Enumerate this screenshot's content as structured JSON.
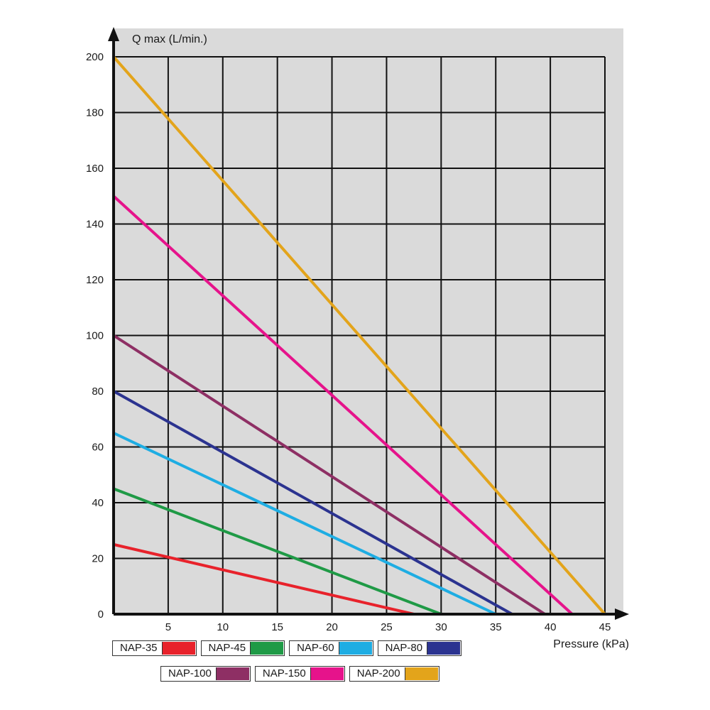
{
  "chart_data": {
    "type": "line",
    "title": "",
    "xlabel": "Pressure (kPa)",
    "ylabel": "Q max (L/min.)",
    "xlim": [
      0,
      45
    ],
    "ylim": [
      0,
      200
    ],
    "x_ticks": [
      5,
      10,
      15,
      20,
      25,
      30,
      35,
      40,
      45
    ],
    "y_ticks": [
      0,
      20,
      40,
      60,
      80,
      100,
      120,
      140,
      160,
      180,
      200
    ],
    "grid": true,
    "legend_position": "bottom",
    "series": [
      {
        "name": "NAP-35",
        "color": "#e8222b",
        "x": [
          0,
          27.5
        ],
        "y": [
          25,
          0
        ]
      },
      {
        "name": "NAP-45",
        "color": "#1f9a46",
        "x": [
          0,
          30
        ],
        "y": [
          45,
          0
        ]
      },
      {
        "name": "NAP-60",
        "color": "#1eade3",
        "x": [
          0,
          35
        ],
        "y": [
          65,
          0
        ]
      },
      {
        "name": "NAP-80",
        "color": "#2b3390",
        "x": [
          0,
          36.5
        ],
        "y": [
          80,
          0
        ]
      },
      {
        "name": "NAP-100",
        "color": "#8e2f64",
        "x": [
          0,
          39.5
        ],
        "y": [
          100,
          0
        ]
      },
      {
        "name": "NAP-150",
        "color": "#e6138b",
        "x": [
          0,
          42
        ],
        "y": [
          150,
          0
        ]
      },
      {
        "name": "NAP-200",
        "color": "#e3a41b",
        "x": [
          0,
          45
        ],
        "y": [
          200,
          0
        ]
      }
    ]
  }
}
